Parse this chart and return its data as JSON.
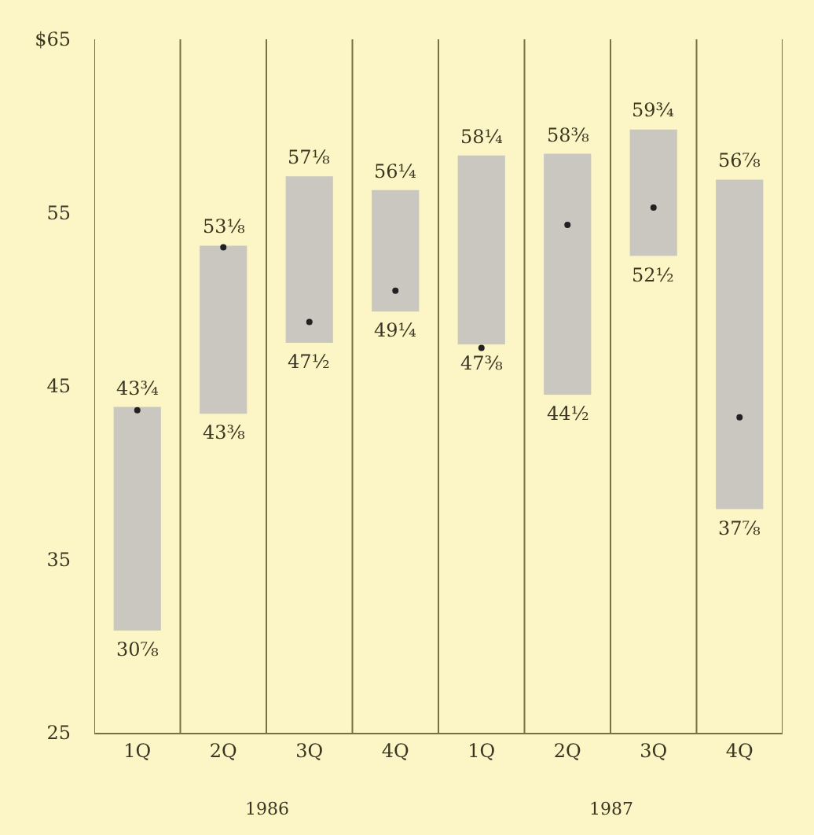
{
  "chart_data": {
    "type": "bar",
    "categories": [
      "1Q",
      "2Q",
      "3Q",
      "4Q",
      "1Q",
      "2Q",
      "3Q",
      "4Q"
    ],
    "series": [
      {
        "color": "#c9c7c0",
        "base": [
          30.9,
          43.4,
          47.5,
          49.3,
          47.4,
          44.5,
          52.5,
          37.9
        ],
        "values": [
          12.9,
          9.7,
          9.6,
          7.0,
          10.9,
          13.9,
          7.3,
          19.0
        ]
      },
      {
        "type": "scatter",
        "color": "#222222",
        "marker": "circle",
        "values": [
          43.6,
          53.0,
          48.7,
          50.5,
          47.2,
          54.3,
          55.3,
          43.2
        ]
      }
    ],
    "ylim": [
      25,
      65
    ],
    "yticks": [
      25,
      35,
      45,
      55,
      {
        "value": 65,
        "label": "$65"
      }
    ],
    "grid": "x",
    "annotations": [
      "43¾",
      "30⅞",
      "53⅛",
      "43⅜",
      "57⅛",
      "47½",
      "56¼",
      "49¼",
      "58¼",
      "47⅜",
      "58⅜",
      "44½",
      "59¾",
      "52½",
      "56⅞",
      "37⅞",
      "1986",
      "1987"
    ]
  }
}
